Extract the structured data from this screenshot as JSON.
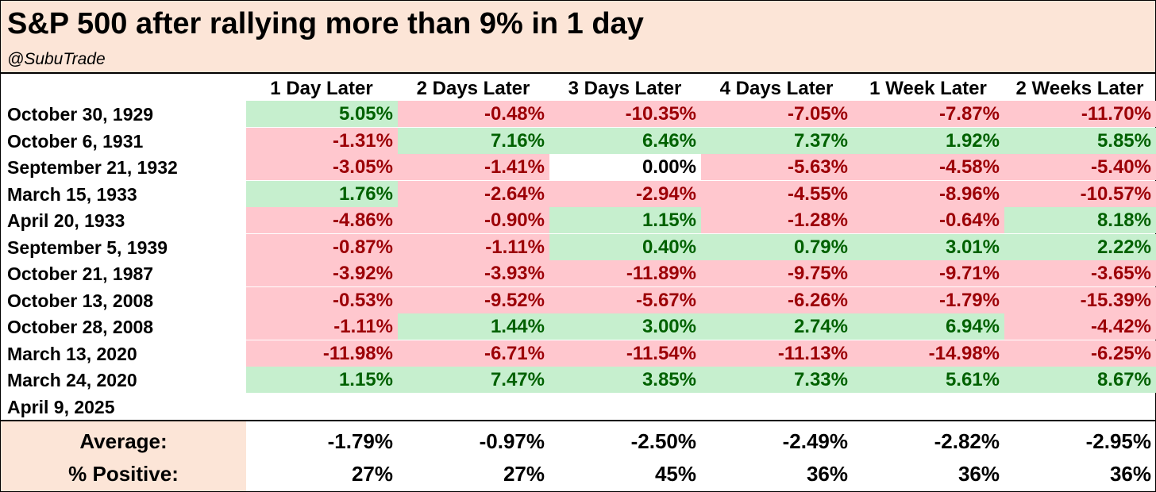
{
  "title": "S&P 500 after rallying more than 9% in 1 day",
  "subtitle": "@SubuTrade",
  "colors": {
    "header_bg": "#fce5d7",
    "positive_bg": "#c6efce",
    "positive_text": "#006100",
    "negative_bg": "#ffc7ce",
    "negative_text": "#9c0006"
  },
  "chart_data": {
    "type": "table",
    "title": "S&P 500 after rallying more than 9% in 1 day",
    "columns": [
      "1 Day Later",
      "2 Days Later",
      "3 Days Later",
      "4 Days Later",
      "1 Week Later",
      "2 Weeks Later"
    ],
    "rows": [
      {
        "date": "October 30, 1929",
        "values": [
          "5.05%",
          "-0.48%",
          "-10.35%",
          "-7.05%",
          "-7.87%",
          "-11.70%"
        ]
      },
      {
        "date": "October 6, 1931",
        "values": [
          "-1.31%",
          "7.16%",
          "6.46%",
          "7.37%",
          "1.92%",
          "5.85%"
        ]
      },
      {
        "date": "September 21, 1932",
        "values": [
          "-3.05%",
          "-1.41%",
          "0.00%",
          "-5.63%",
          "-4.58%",
          "-5.40%"
        ]
      },
      {
        "date": "March 15, 1933",
        "values": [
          "1.76%",
          "-2.64%",
          "-2.94%",
          "-4.55%",
          "-8.96%",
          "-10.57%"
        ]
      },
      {
        "date": "April 20, 1933",
        "values": [
          "-4.86%",
          "-0.90%",
          "1.15%",
          "-1.28%",
          "-0.64%",
          "8.18%"
        ]
      },
      {
        "date": "September 5, 1939",
        "values": [
          "-0.87%",
          "-1.11%",
          "0.40%",
          "0.79%",
          "3.01%",
          "2.22%"
        ]
      },
      {
        "date": "October 21, 1987",
        "values": [
          "-3.92%",
          "-3.93%",
          "-11.89%",
          "-9.75%",
          "-9.71%",
          "-3.65%"
        ]
      },
      {
        "date": "October 13, 2008",
        "values": [
          "-0.53%",
          "-9.52%",
          "-5.67%",
          "-6.26%",
          "-1.79%",
          "-15.39%"
        ]
      },
      {
        "date": "October 28, 2008",
        "values": [
          "-1.11%",
          "1.44%",
          "3.00%",
          "2.74%",
          "6.94%",
          "-4.42%"
        ]
      },
      {
        "date": "March 13, 2020",
        "values": [
          "-11.98%",
          "-6.71%",
          "-11.54%",
          "-11.13%",
          "-14.98%",
          "-6.25%"
        ]
      },
      {
        "date": "March 24, 2020",
        "values": [
          "1.15%",
          "7.47%",
          "3.85%",
          "7.33%",
          "5.61%",
          "8.67%"
        ]
      },
      {
        "date": "April 9, 2025",
        "values": []
      }
    ],
    "summary": [
      {
        "label": "Average:",
        "values": [
          "-1.79%",
          "-0.97%",
          "-2.50%",
          "-2.49%",
          "-2.82%",
          "-2.95%"
        ]
      },
      {
        "label": "% Positive:",
        "values": [
          "27%",
          "27%",
          "45%",
          "36%",
          "36%",
          "36%"
        ]
      }
    ]
  }
}
